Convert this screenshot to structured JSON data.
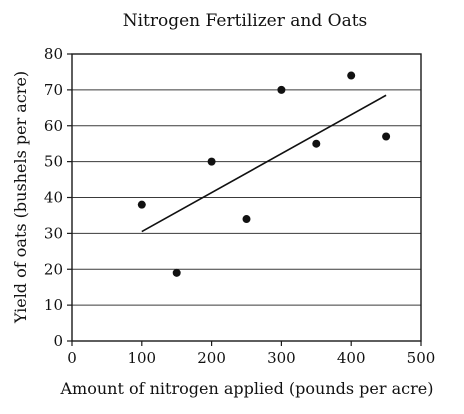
{
  "chart_data": {
    "type": "scatter",
    "title": "Nitrogen Fertilizer and Oats",
    "xlabel": "Amount of nitrogen applied (pounds per acre)",
    "ylabel": "Yield of oats (bushels per acre)",
    "xlim": [
      0,
      500
    ],
    "ylim": [
      0,
      80
    ],
    "xticks": [
      0,
      100,
      200,
      300,
      400,
      500
    ],
    "yticks": [
      0,
      10,
      20,
      30,
      40,
      50,
      60,
      70,
      80
    ],
    "xtick_labels": [
      "0",
      "100",
      "200",
      "300",
      "400",
      "500"
    ],
    "ytick_labels": [
      "0",
      "10",
      "20",
      "30",
      "40",
      "50",
      "60",
      "70",
      "80"
    ],
    "grid": "horizontal",
    "points": [
      {
        "x": 100,
        "y": 38
      },
      {
        "x": 150,
        "y": 19
      },
      {
        "x": 200,
        "y": 50
      },
      {
        "x": 250,
        "y": 34
      },
      {
        "x": 300,
        "y": 70
      },
      {
        "x": 350,
        "y": 55
      },
      {
        "x": 400,
        "y": 74
      },
      {
        "x": 450,
        "y": 57
      }
    ],
    "trend_line": {
      "x": [
        100,
        450
      ],
      "y": [
        30.5,
        68.5
      ]
    }
  }
}
